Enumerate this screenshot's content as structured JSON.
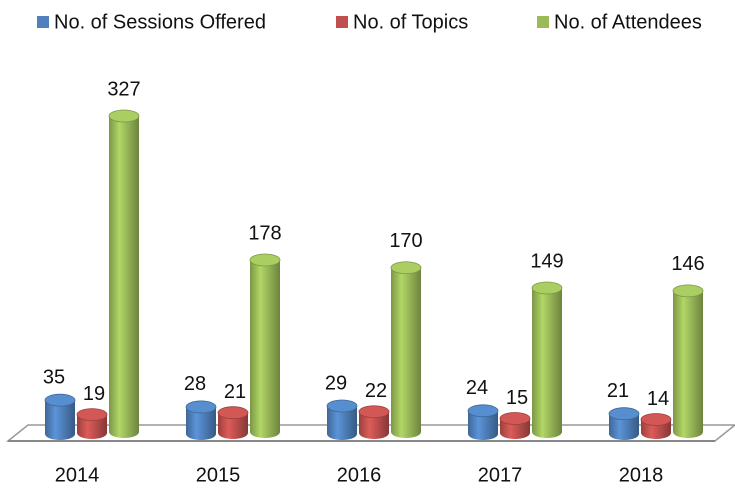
{
  "chart_data": {
    "type": "bar",
    "categories": [
      "2014",
      "2015",
      "2016",
      "2017",
      "2018"
    ],
    "series": [
      {
        "name": "No. of Sessions Offered",
        "color": "#4f81bd",
        "values": [
          35,
          28,
          29,
          24,
          21
        ]
      },
      {
        "name": "No. of Topics",
        "color": "#c0504d",
        "values": [
          19,
          21,
          22,
          15,
          14
        ]
      },
      {
        "name": "No. of Attendees",
        "color": "#9bbb59",
        "values": [
          327,
          178,
          170,
          149,
          146
        ]
      }
    ],
    "legend": "top"
  }
}
